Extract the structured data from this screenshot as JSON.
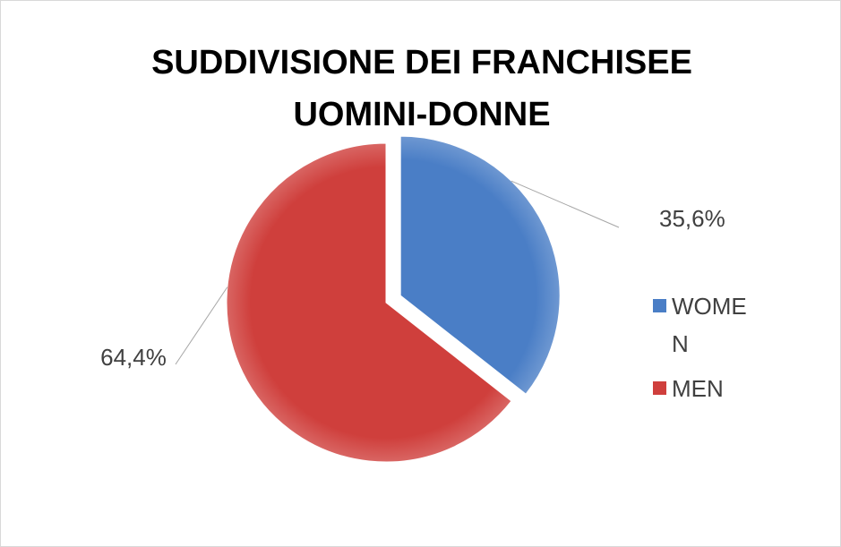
{
  "chart_data": {
    "type": "pie",
    "title": "SUDDIVISIONE DEI FRANCHISEE UOMINI-DONNE",
    "categories": [
      "WOMEN",
      "MEN"
    ],
    "values": [
      35.6,
      64.4
    ],
    "value_labels": [
      "35,6%",
      "64,4%"
    ],
    "colors": [
      "#4a7ec6",
      "#cf3f3c"
    ],
    "legend": "right"
  }
}
